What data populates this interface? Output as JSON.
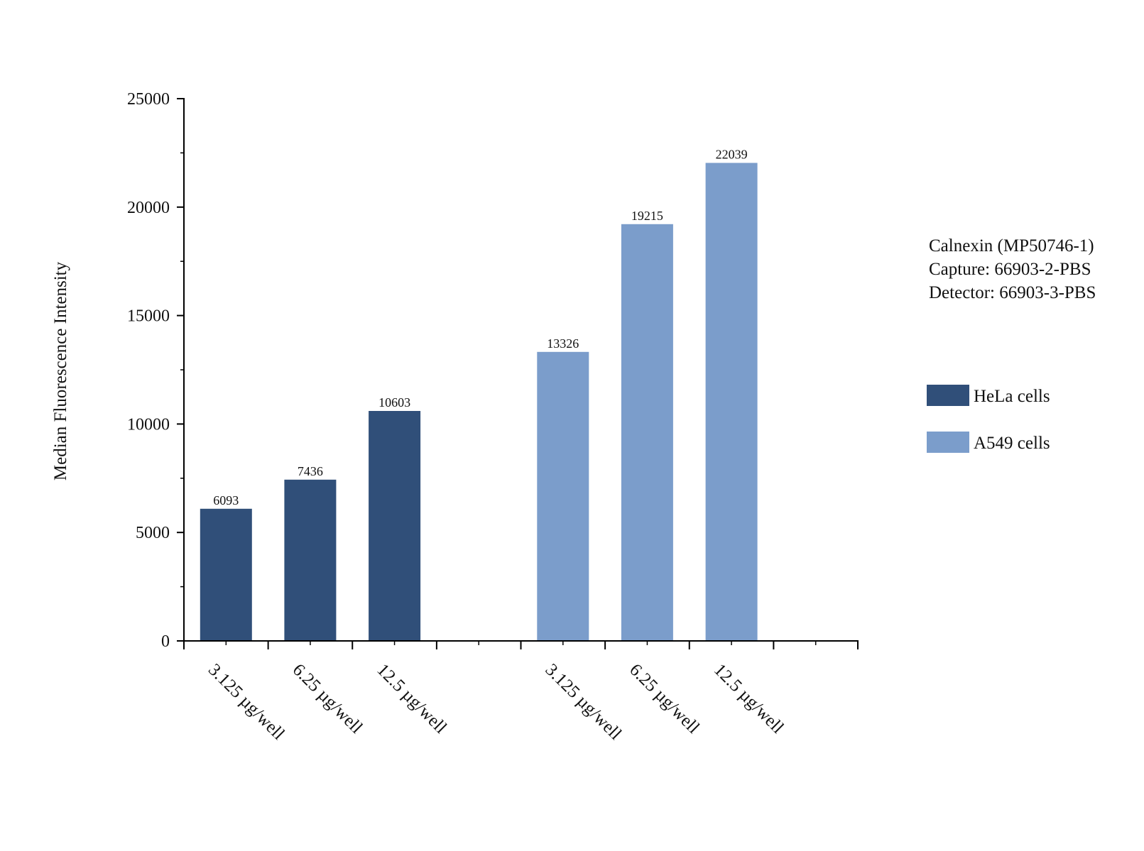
{
  "chart_data": {
    "type": "bar",
    "ylabel": "Median Fluorescence Intensity",
    "xlabel": "",
    "ylim": [
      0,
      25000
    ],
    "y_major_ticks": [
      0,
      5000,
      10000,
      15000,
      20000,
      25000
    ],
    "y_minor_step": 2500,
    "grid": false,
    "legend_position": "right",
    "annotation_lines": [
      "Calnexin (MP50746-1)",
      "Capture: 66903-2-PBS",
      "Detector: 66903-3-PBS"
    ],
    "groups": [
      {
        "name": "HeLa cells",
        "color": "#304f79",
        "categories": [
          "3.125 µg/well",
          "6.25 µg/well",
          "12.5 µg/well"
        ],
        "values": [
          6093,
          7436,
          10603
        ]
      },
      {
        "name": "A549 cells",
        "color": "#7b9dcb",
        "categories": [
          "3.125 µg/well",
          "6.25 µg/well",
          "12.5 µg/well"
        ],
        "values": [
          13326,
          19215,
          22039
        ]
      }
    ]
  }
}
